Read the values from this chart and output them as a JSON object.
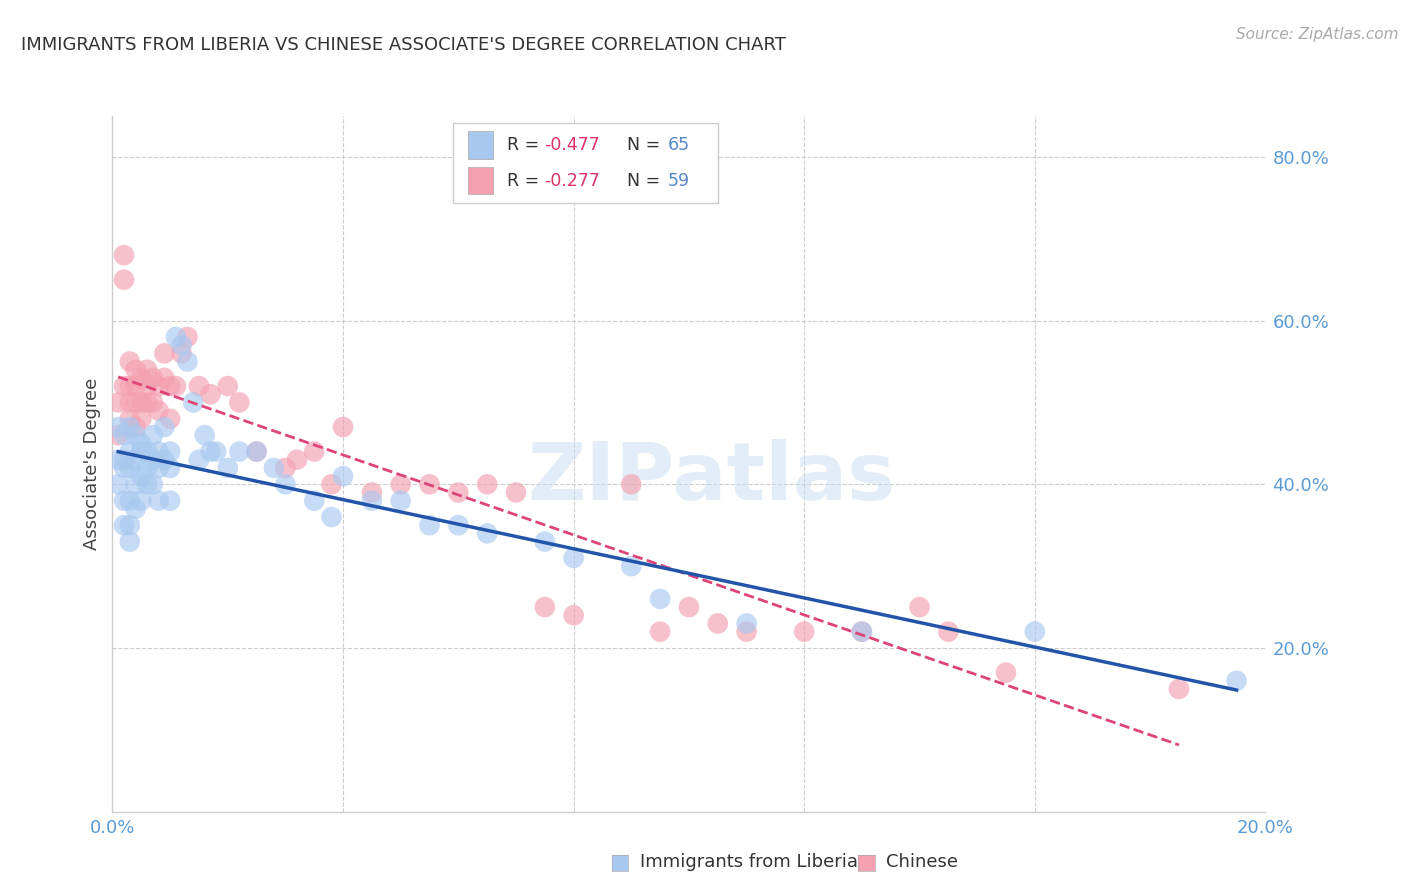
{
  "title": "IMMIGRANTS FROM LIBERIA VS CHINESE ASSOCIATE'S DEGREE CORRELATION CHART",
  "source": "Source: ZipAtlas.com",
  "ylabel": "Associate's Degree",
  "watermark": "ZIPatlas",
  "legend_liberia": "Immigrants from Liberia",
  "legend_chinese": "Chinese",
  "r_liberia": "-0.477",
  "n_liberia": "65",
  "r_chinese": "-0.277",
  "n_chinese": "59",
  "x_min": 0.0,
  "x_max": 0.2,
  "y_min": 0.0,
  "y_max": 0.85,
  "color_liberia": "#a8c8f0",
  "color_chinese": "#f4a0b0",
  "color_line_liberia": "#2255aa",
  "color_line_chinese": "#dd4477",
  "background_color": "#ffffff",
  "grid_color": "#cccccc",
  "liberia_x": [
    0.001,
    0.001,
    0.001,
    0.002,
    0.002,
    0.002,
    0.002,
    0.002,
    0.003,
    0.003,
    0.003,
    0.003,
    0.003,
    0.003,
    0.004,
    0.004,
    0.004,
    0.004,
    0.005,
    0.005,
    0.005,
    0.005,
    0.006,
    0.006,
    0.006,
    0.007,
    0.007,
    0.007,
    0.008,
    0.008,
    0.008,
    0.009,
    0.009,
    0.01,
    0.01,
    0.01,
    0.011,
    0.012,
    0.013,
    0.014,
    0.015,
    0.016,
    0.017,
    0.018,
    0.02,
    0.022,
    0.025,
    0.028,
    0.03,
    0.035,
    0.038,
    0.04,
    0.045,
    0.05,
    0.055,
    0.06,
    0.065,
    0.075,
    0.08,
    0.09,
    0.095,
    0.11,
    0.13,
    0.16,
    0.195
  ],
  "liberia_y": [
    0.47,
    0.43,
    0.4,
    0.46,
    0.43,
    0.42,
    0.38,
    0.35,
    0.47,
    0.44,
    0.42,
    0.38,
    0.35,
    0.33,
    0.46,
    0.43,
    0.4,
    0.37,
    0.45,
    0.44,
    0.41,
    0.38,
    0.44,
    0.42,
    0.4,
    0.46,
    0.43,
    0.4,
    0.44,
    0.42,
    0.38,
    0.47,
    0.43,
    0.44,
    0.42,
    0.38,
    0.58,
    0.57,
    0.55,
    0.5,
    0.43,
    0.46,
    0.44,
    0.44,
    0.42,
    0.44,
    0.44,
    0.42,
    0.4,
    0.38,
    0.36,
    0.41,
    0.38,
    0.38,
    0.35,
    0.35,
    0.34,
    0.33,
    0.31,
    0.3,
    0.26,
    0.23,
    0.22,
    0.22,
    0.16
  ],
  "chinese_x": [
    0.001,
    0.001,
    0.002,
    0.002,
    0.002,
    0.003,
    0.003,
    0.003,
    0.003,
    0.004,
    0.004,
    0.004,
    0.004,
    0.005,
    0.005,
    0.005,
    0.006,
    0.006,
    0.006,
    0.007,
    0.007,
    0.008,
    0.008,
    0.009,
    0.009,
    0.01,
    0.01,
    0.011,
    0.012,
    0.013,
    0.015,
    0.017,
    0.02,
    0.022,
    0.025,
    0.03,
    0.032,
    0.035,
    0.038,
    0.04,
    0.045,
    0.05,
    0.055,
    0.06,
    0.065,
    0.07,
    0.075,
    0.08,
    0.09,
    0.095,
    0.1,
    0.105,
    0.11,
    0.12,
    0.13,
    0.14,
    0.145,
    0.155,
    0.185
  ],
  "chinese_y": [
    0.5,
    0.46,
    0.68,
    0.65,
    0.52,
    0.55,
    0.52,
    0.5,
    0.48,
    0.54,
    0.52,
    0.5,
    0.47,
    0.53,
    0.5,
    0.48,
    0.54,
    0.52,
    0.5,
    0.53,
    0.5,
    0.52,
    0.49,
    0.56,
    0.53,
    0.52,
    0.48,
    0.52,
    0.56,
    0.58,
    0.52,
    0.51,
    0.52,
    0.5,
    0.44,
    0.42,
    0.43,
    0.44,
    0.4,
    0.47,
    0.39,
    0.4,
    0.4,
    0.39,
    0.4,
    0.39,
    0.25,
    0.24,
    0.4,
    0.22,
    0.25,
    0.23,
    0.22,
    0.22,
    0.22,
    0.25,
    0.22,
    0.17,
    0.15
  ]
}
